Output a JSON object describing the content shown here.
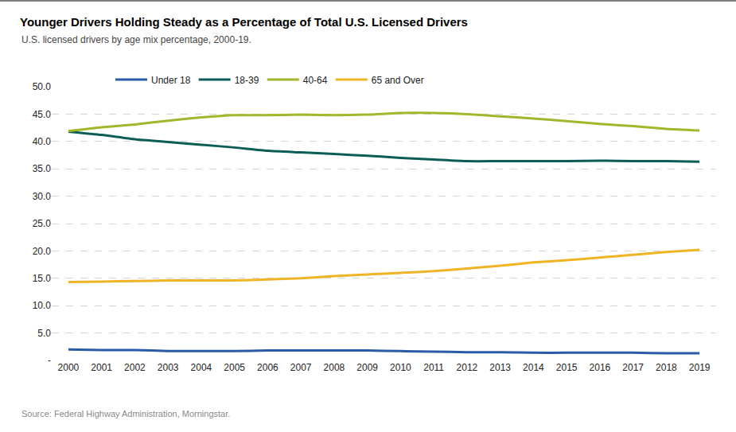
{
  "chart_data": {
    "type": "line",
    "title": "Younger Drivers Holding Steady as a Percentage of Total U.S. Licensed Drivers",
    "subtitle": "U.S. licensed drivers by age mix percentage, 2000-19.",
    "source": "Source: Federal Highway Administration, Morningstar.",
    "categories": [
      "2000",
      "2001",
      "2002",
      "2003",
      "2004",
      "2005",
      "2006",
      "2007",
      "2008",
      "2009",
      "2010",
      "2011",
      "2012",
      "2013",
      "2014",
      "2015",
      "2016",
      "2017",
      "2018",
      "2019"
    ],
    "series": [
      {
        "name": "Under 18",
        "color": "#2a5aa8",
        "values": [
          2.0,
          1.9,
          1.9,
          1.7,
          1.7,
          1.7,
          1.8,
          1.8,
          1.8,
          1.8,
          1.7,
          1.6,
          1.5,
          1.5,
          1.4,
          1.4,
          1.4,
          1.4,
          1.3,
          1.3
        ]
      },
      {
        "name": "18-39",
        "color": "#0b5e55",
        "values": [
          41.8,
          41.2,
          40.4,
          39.9,
          39.4,
          38.9,
          38.3,
          38.0,
          37.7,
          37.4,
          37.0,
          36.7,
          36.4,
          36.4,
          36.4,
          36.4,
          36.5,
          36.4,
          36.4,
          36.3
        ]
      },
      {
        "name": "40-64",
        "color": "#a3b62c",
        "values": [
          41.9,
          42.6,
          43.1,
          43.8,
          44.4,
          44.8,
          44.8,
          44.9,
          44.8,
          44.9,
          45.2,
          45.2,
          45.0,
          44.6,
          44.2,
          43.7,
          43.2,
          42.8,
          42.3,
          42.0
        ]
      },
      {
        "name": "65 and Over",
        "color": "#f0b323",
        "values": [
          14.3,
          14.4,
          14.5,
          14.6,
          14.6,
          14.6,
          14.8,
          15.0,
          15.4,
          15.7,
          16.0,
          16.3,
          16.8,
          17.3,
          17.9,
          18.3,
          18.8,
          19.3,
          19.8,
          20.2
        ]
      }
    ],
    "ylim": [
      0,
      50
    ],
    "yticks": [
      {
        "value": 0,
        "label": "-"
      },
      {
        "value": 5,
        "label": "5.0"
      },
      {
        "value": 10,
        "label": "10.0"
      },
      {
        "value": 15,
        "label": "15.0"
      },
      {
        "value": 20,
        "label": "20.0"
      },
      {
        "value": 25,
        "label": "25.0"
      },
      {
        "value": 30,
        "label": "30.0"
      },
      {
        "value": 35,
        "label": "35.0"
      },
      {
        "value": 40,
        "label": "40.0"
      },
      {
        "value": 45,
        "label": "45.0"
      },
      {
        "value": 50,
        "label": "50.0"
      }
    ],
    "grid": true,
    "legend": "top"
  }
}
